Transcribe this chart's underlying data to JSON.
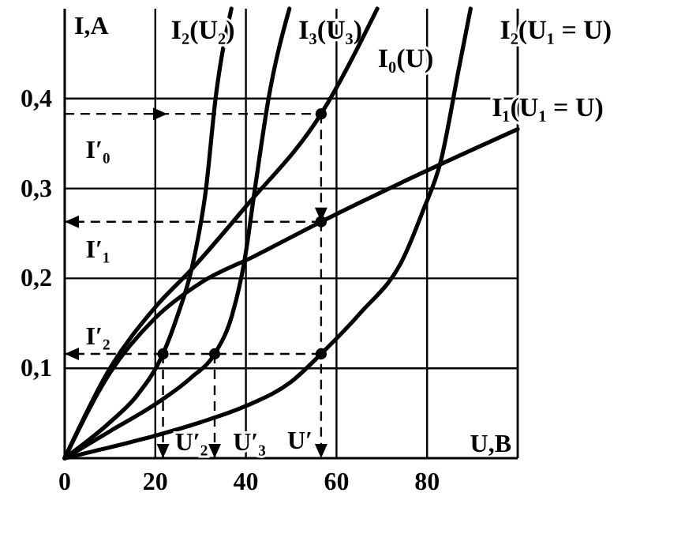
{
  "chart_data": {
    "type": "line",
    "xlabel": "U,B",
    "ylabel": "I,A",
    "xlim": [
      0,
      100
    ],
    "ylim": [
      0,
      0.5
    ],
    "xticks": [
      0,
      20,
      40,
      60,
      80
    ],
    "yticks": [
      {
        "value": 0.1,
        "label": "0,1"
      },
      {
        "value": 0.2,
        "label": "0,2"
      },
      {
        "value": 0.3,
        "label": "0,3"
      },
      {
        "value": 0.4,
        "label": "0,4"
      }
    ],
    "grid": true,
    "marker": "none",
    "line_style": "solid",
    "series": [
      {
        "name": "I₂(U₂)",
        "color": "#000000",
        "x": [
          0,
          10,
          16,
          21.7,
          25,
          28,
          31.2,
          33.3,
          36.8
        ],
        "values": [
          0,
          0.04,
          0.07,
          0.116,
          0.16,
          0.21,
          0.3,
          0.4,
          0.5
        ]
      },
      {
        "name": "I₃(U₃)",
        "color": "#000000",
        "x": [
          0,
          10,
          20,
          28,
          33.1,
          37,
          39.7,
          42,
          45,
          49.6
        ],
        "values": [
          0,
          0.03,
          0.06,
          0.09,
          0.116,
          0.16,
          0.22,
          0.3,
          0.4,
          0.5
        ]
      },
      {
        "name": "I₀(U)",
        "color": "#000000",
        "x": [
          0,
          10,
          20,
          28,
          40,
          56.6,
          69
        ],
        "values": [
          0,
          0.1,
          0.168,
          0.21,
          0.28,
          0.383,
          0.5
        ]
      },
      {
        "name": "I₂(U₁ = U)",
        "color": "#000000",
        "x": [
          0,
          10,
          20,
          30,
          40,
          50,
          56.6,
          65,
          75,
          79,
          83,
          87,
          89.6
        ],
        "values": [
          0,
          0.012,
          0.025,
          0.04,
          0.058,
          0.085,
          0.116,
          0.16,
          0.225,
          0.274,
          0.33,
          0.433,
          0.5
        ]
      },
      {
        "name": "I₁(U₁ = U)",
        "color": "#000000",
        "x": [
          0,
          10,
          20,
          30,
          42,
          56.6,
          80,
          100
        ],
        "values": [
          0,
          0.095,
          0.156,
          0.195,
          0.225,
          0.263,
          0.32,
          0.366
        ]
      },
      {
        "type": "scatter",
        "marker": "circle",
        "color": "#000000",
        "x": [
          56.6,
          56.6,
          21.7,
          33.1,
          56.6
        ],
        "values": [
          0.383,
          0.263,
          0.116,
          0.116,
          0.116
        ]
      }
    ],
    "annotations": [
      "I′₀",
      "I′₁",
      "I′₂",
      {
        "text": "U′₂",
        "x": 21.7,
        "y": 0.116
      },
      {
        "text": "U′₃",
        "x": 33.1,
        "y": 0.116
      },
      "U′"
    ]
  }
}
